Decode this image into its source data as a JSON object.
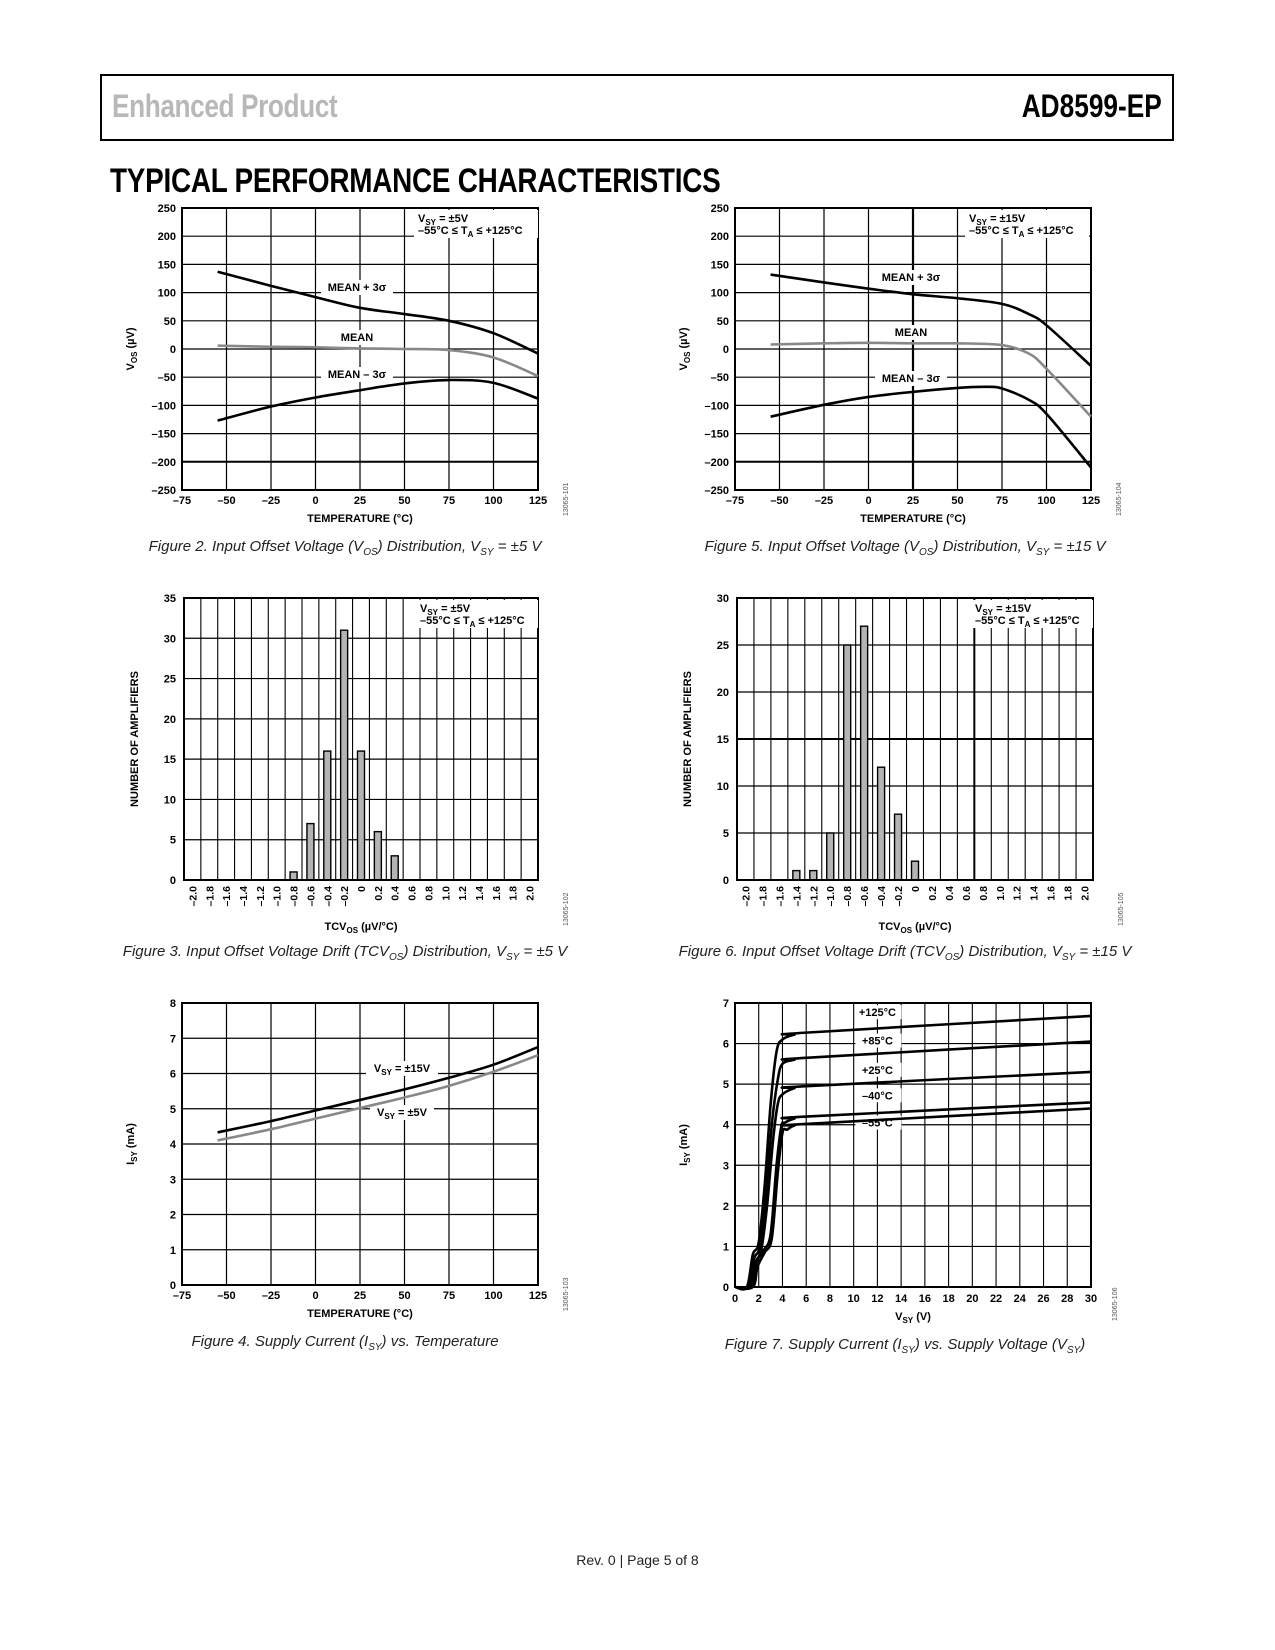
{
  "header": {
    "left": "Enhanced Product",
    "right": "AD8599-EP"
  },
  "section_title": "TYPICAL PERFORMANCE CHARACTERISTICS",
  "footer": "Rev. 0 | Page 5 of 8",
  "chart_data": [
    {
      "id": "fig2",
      "type": "line",
      "caption": "Figure 2. Input Offset Voltage (VOS) Distribution, VSY = ±5 V",
      "caption_parts": {
        "a": "Figure 2. Input Offset Voltage (V",
        "b": "OS",
        "c": ") Distribution, V",
        "d": "SY",
        "e": " = ±5 V"
      },
      "xlabel": "TEMPERATURE (°C)",
      "ylabel_main": "V",
      "ylabel_sub": "OS",
      "ylabel_unit": " (µV)",
      "xlim": [
        -75,
        125
      ],
      "ylim": [
        -250,
        250
      ],
      "xticks": [
        -75,
        -50,
        -25,
        0,
        25,
        50,
        75,
        100,
        125
      ],
      "xtick_labels": [
        "–75",
        "–50",
        "–25",
        "0",
        "25",
        "50",
        "75",
        "100",
        "125"
      ],
      "yticks": [
        250,
        200,
        150,
        100,
        50,
        0,
        -50,
        -100,
        -150,
        -200,
        -250
      ],
      "ytick_labels": [
        "250",
        "200",
        "150",
        "100",
        "50",
        "0",
        "–50",
        "–100",
        "–150",
        "–200",
        "–250"
      ],
      "annotation_line1": "VSY = ±5V",
      "annotation_line2": "–55°C ≤ TA ≤ +125°C",
      "ann": {
        "v": "V",
        "vsub": "SY",
        "veq": " = ±5V",
        "t1": "–55°C ≤ T",
        "tsub": "A",
        "t2": " ≤ +125°C"
      },
      "series": [
        {
          "name": "MEAN + 3σ",
          "color": "#000000",
          "x": [
            -55,
            -25,
            0,
            25,
            50,
            75,
            100,
            125
          ],
          "y": [
            137,
            112,
            92,
            73,
            62,
            50,
            28,
            -8
          ]
        },
        {
          "name": "MEAN",
          "color": "#888888",
          "x": [
            -55,
            -25,
            0,
            25,
            50,
            75,
            100,
            125
          ],
          "y": [
            6,
            4,
            3,
            1,
            0,
            -2,
            -15,
            -48
          ]
        },
        {
          "name": "MEAN – 3σ",
          "color": "#000000",
          "x": [
            -55,
            -25,
            0,
            25,
            50,
            75,
            100,
            125
          ],
          "y": [
            -127,
            -102,
            -86,
            -73,
            -61,
            -55,
            -60,
            -88
          ]
        }
      ],
      "id_code": "13065-101"
    },
    {
      "id": "fig5",
      "type": "line",
      "caption_parts": {
        "a": "Figure 5. Input Offset Voltage (V",
        "b": "OS",
        "c": ") Distribution, V",
        "d": "SY",
        "e": " = ±15 V"
      },
      "xlabel": "TEMPERATURE (°C)",
      "ylabel_main": "V",
      "ylabel_sub": "OS",
      "ylabel_unit": " (µV)",
      "xlim": [
        -75,
        125
      ],
      "ylim": [
        -250,
        250
      ],
      "xticks": [
        -75,
        -50,
        -25,
        0,
        25,
        50,
        75,
        100,
        125
      ],
      "xtick_labels": [
        "–75",
        "–50",
        "–25",
        "0",
        "25",
        "50",
        "75",
        "100",
        "125"
      ],
      "yticks": [
        250,
        200,
        150,
        100,
        50,
        0,
        -50,
        -100,
        -150,
        -200,
        -250
      ],
      "ytick_labels": [
        "250",
        "200",
        "150",
        "100",
        "50",
        "0",
        "–50",
        "–100",
        "–150",
        "–200",
        "–250"
      ],
      "ann": {
        "v": "V",
        "vsub": "SY",
        "veq": " = ±15V",
        "t1": "–55°C ≤ T",
        "tsub": "A",
        "t2": " ≤ +125°C"
      },
      "series": [
        {
          "name": "MEAN + 3σ",
          "color": "#000000",
          "x": [
            -55,
            -25,
            0,
            25,
            50,
            75,
            90,
            100,
            125
          ],
          "y": [
            132,
            118,
            107,
            97,
            90,
            80,
            62,
            42,
            -30
          ]
        },
        {
          "name": "MEAN",
          "color": "#888888",
          "x": [
            -55,
            -25,
            0,
            25,
            50,
            75,
            90,
            100,
            125
          ],
          "y": [
            8,
            10,
            11,
            10,
            10,
            7,
            -8,
            -35,
            -120
          ]
        },
        {
          "name": "MEAN – 3σ",
          "color": "#000000",
          "x": [
            -55,
            -25,
            0,
            25,
            50,
            65,
            75,
            90,
            100,
            125
          ],
          "y": [
            -120,
            -99,
            -85,
            -76,
            -69,
            -67,
            -70,
            -90,
            -115,
            -210
          ]
        }
      ],
      "id_code": "13065-104"
    },
    {
      "id": "fig3",
      "type": "bar",
      "caption_parts": {
        "a": "Figure 3. Input Offset Voltage Drift (TCV",
        "b": "OS",
        "c": ") Distribution, V",
        "d": "SY",
        "e": " = ±5 V"
      },
      "xlabel_main": "TCV",
      "xlabel_sub": "OS",
      "xlabel_unit": " (µV/°C)",
      "ylabel": "NUMBER OF AMPLIFIERS",
      "ylim": [
        0,
        35
      ],
      "yticks": [
        35,
        30,
        25,
        20,
        15,
        10,
        5,
        0
      ],
      "ytick_labels": [
        "35",
        "30",
        "25",
        "20",
        "15",
        "10",
        "5",
        "0"
      ],
      "categories": [
        "–2.0",
        "–1.8",
        "–1.6",
        "–1.4",
        "–1.2",
        "–1.0",
        "–0.8",
        "–0.6",
        "–0.4",
        "–0.2",
        "0",
        "0.2",
        "0.4",
        "0.6",
        "0.8",
        "1.0",
        "1.2",
        "1.4",
        "1.6",
        "1.8",
        "2.0"
      ],
      "values": [
        0,
        0,
        0,
        0,
        0,
        0,
        1,
        7,
        16,
        31,
        16,
        6,
        3,
        0,
        0,
        0,
        0,
        0,
        0,
        0,
        0
      ],
      "ann": {
        "v": "V",
        "vsub": "SY",
        "veq": " = ±5V",
        "t1": "–55°C ≤ T",
        "tsub": "A",
        "t2": " ≤ +125°C"
      },
      "bar_color": "#b4b4b4",
      "id_code": "13065-102"
    },
    {
      "id": "fig6",
      "type": "bar",
      "caption_parts": {
        "a": "Figure 6. Input Offset Voltage Drift (TCV",
        "b": "OS",
        "c": ") Distribution, V",
        "d": "SY",
        "e": " = ±15 V"
      },
      "xlabel_main": "TCV",
      "xlabel_sub": "OS",
      "xlabel_unit": " (µV/°C)",
      "ylabel": "NUMBER OF AMPLIFIERS",
      "ylim": [
        0,
        30
      ],
      "yticks": [
        30,
        25,
        20,
        15,
        10,
        5,
        0
      ],
      "ytick_labels": [
        "30",
        "25",
        "20",
        "15",
        "10",
        "5",
        "0"
      ],
      "categories": [
        "–2.0",
        "–1.8",
        "–1.6",
        "–1.4",
        "–1.2",
        "–1.0",
        "–0.8",
        "–0.6",
        "–0.4",
        "–0.2",
        "0",
        "0.2",
        "0.4",
        "0.6",
        "0.8",
        "1.0",
        "1.2",
        "1.4",
        "1.6",
        "1.8",
        "2.0"
      ],
      "values": [
        0,
        0,
        0,
        1,
        1,
        5,
        25,
        27,
        12,
        7,
        2,
        0,
        0,
        0,
        0,
        0,
        0,
        0,
        0,
        0,
        0
      ],
      "ann": {
        "v": "V",
        "vsub": "SY",
        "veq": " = ±15V",
        "t1": "–55°C ≤ T",
        "tsub": "A",
        "t2": " ≤ +125°C"
      },
      "bar_color": "#b4b4b4",
      "id_code": "13065-105"
    },
    {
      "id": "fig4",
      "type": "line",
      "caption_parts": {
        "a": "Figure 4. Supply Current (I",
        "b": "SY",
        "c": ") vs. Temperature",
        "d": "",
        "e": ""
      },
      "xlabel": "TEMPERATURE (°C)",
      "ylabel_main": "I",
      "ylabel_sub": "SY",
      "ylabel_unit": " (mA)",
      "xlim": [
        -75,
        125
      ],
      "ylim": [
        0,
        8
      ],
      "xticks": [
        -75,
        -50,
        -25,
        0,
        25,
        50,
        75,
        100,
        125
      ],
      "xtick_labels": [
        "–75",
        "–50",
        "–25",
        "0",
        "25",
        "50",
        "75",
        "100",
        "125"
      ],
      "yticks": [
        8,
        7,
        6,
        5,
        4,
        3,
        2,
        1,
        0
      ],
      "ytick_labels": [
        "8",
        "7",
        "6",
        "5",
        "4",
        "3",
        "2",
        "1",
        "0"
      ],
      "series": [
        {
          "name": "VSY = ±15V",
          "label_main": "V",
          "label_sub": "SY",
          "label_rest": " = ±15V",
          "color": "#000000",
          "x": [
            -55,
            -25,
            0,
            25,
            50,
            75,
            100,
            125
          ],
          "y": [
            4.33,
            4.65,
            4.95,
            5.25,
            5.55,
            5.88,
            6.25,
            6.75
          ]
        },
        {
          "name": "VSY = ±5V",
          "label_main": "V",
          "label_sub": "SY",
          "label_rest": " = ±5V",
          "color": "#888888",
          "x": [
            -55,
            -25,
            0,
            25,
            50,
            75,
            100,
            125
          ],
          "y": [
            4.1,
            4.42,
            4.72,
            5.02,
            5.32,
            5.65,
            6.05,
            6.52
          ]
        }
      ],
      "id_code": "13065-103"
    },
    {
      "id": "fig7",
      "type": "line",
      "caption_parts": {
        "a": "Figure 7. Supply Current (I",
        "b": "SY",
        "c": ") vs. Supply Voltage (V",
        "d": "SY",
        "e": ")"
      },
      "xlabel_main": "V",
      "xlabel_sub": "SY",
      "xlabel_unit": " (V)",
      "ylabel_main": "I",
      "ylabel_sub": "SY",
      "ylabel_unit": " (mA)",
      "xlim": [
        0,
        30
      ],
      "ylim": [
        0,
        7
      ],
      "xticks": [
        0,
        2,
        4,
        6,
        8,
        10,
        12,
        14,
        16,
        18,
        20,
        22,
        24,
        26,
        28,
        30
      ],
      "xtick_labels": [
        "0",
        "2",
        "4",
        "6",
        "8",
        "10",
        "12",
        "14",
        "16",
        "18",
        "20",
        "22",
        "24",
        "26",
        "28",
        "30"
      ],
      "yticks": [
        7,
        6,
        5,
        4,
        3,
        2,
        1,
        0
      ],
      "ytick_labels": [
        "7",
        "6",
        "5",
        "4",
        "3",
        "2",
        "1",
        "0"
      ],
      "series": [
        {
          "name": "+125°C",
          "color": "#000000",
          "x": [
            0,
            1,
            1.5,
            2,
            2.5,
            3,
            3.5,
            4,
            5,
            6,
            30
          ],
          "y": [
            0,
            0,
            0.8,
            1.1,
            2.5,
            4.5,
            5.8,
            6.1,
            6.22,
            6.27,
            6.68
          ]
        },
        {
          "name": "+85°C",
          "color": "#000000",
          "x": [
            0,
            1.1,
            1.6,
            2.1,
            2.6,
            3.1,
            3.6,
            4,
            5,
            6,
            30
          ],
          "y": [
            0,
            0,
            0.7,
            1.0,
            2.2,
            4.0,
            5.1,
            5.5,
            5.6,
            5.65,
            6.05
          ]
        },
        {
          "name": "+25°C",
          "color": "#000000",
          "x": [
            0,
            1.2,
            1.7,
            2.2,
            2.7,
            3.2,
            3.6,
            4,
            5,
            6,
            30
          ],
          "y": [
            0,
            0,
            0.6,
            0.9,
            2.0,
            3.6,
            4.5,
            4.75,
            4.9,
            4.95,
            5.3
          ]
        },
        {
          "name": "–40°C",
          "color": "#000000",
          "x": [
            0,
            1.4,
            1.8,
            2.4,
            3,
            3.5,
            3.9,
            4.2,
            5,
            6,
            30
          ],
          "y": [
            0,
            0,
            0.6,
            0.9,
            1.3,
            3.0,
            3.95,
            4.05,
            4.15,
            4.2,
            4.55
          ]
        },
        {
          "name": "–55°C",
          "color": "#000000",
          "x": [
            0,
            1.5,
            1.9,
            2.5,
            3.1,
            3.6,
            4.0,
            4.4,
            5,
            6,
            30
          ],
          "y": [
            0,
            0,
            0.5,
            0.85,
            1.2,
            2.8,
            3.8,
            3.88,
            3.98,
            4.02,
            4.4
          ]
        }
      ],
      "id_code": "13065-106"
    }
  ]
}
